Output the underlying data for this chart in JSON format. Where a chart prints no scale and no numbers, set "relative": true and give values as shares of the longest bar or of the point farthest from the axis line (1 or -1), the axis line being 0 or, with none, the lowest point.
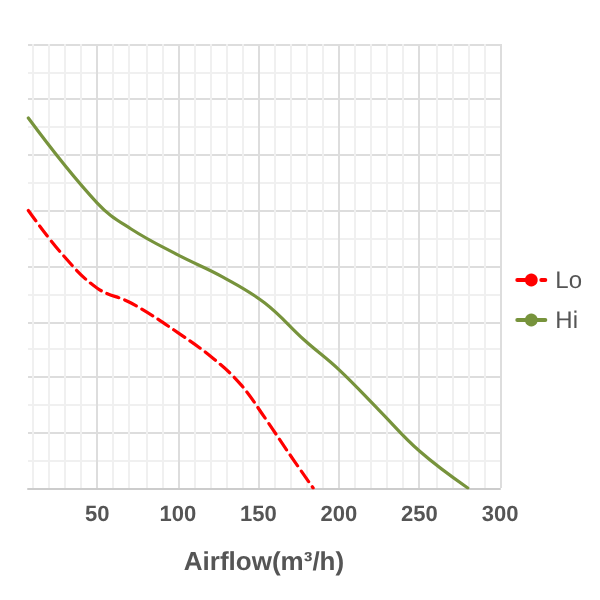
{
  "chart_data": {
    "type": "line",
    "xlabel": "Airflow(m³/h)",
    "relative": true,
    "xlim": [
      7,
      300
    ],
    "xticks": [
      50,
      100,
      150,
      200,
      250,
      300
    ],
    "grid": true,
    "legend": "right",
    "marker": "none",
    "series": [
      {
        "name": "Lo",
        "color": "#ff0000",
        "line_style": "dashed",
        "x": [
          7.2,
          28.6,
          50,
          71,
          100,
          122,
          139,
          154,
          168,
          184
        ],
        "values": [
          0.75,
          0.63,
          0.54,
          0.5,
          0.42,
          0.35,
          0.28,
          0.19,
          0.1,
          0
        ]
      },
      {
        "name": "Hi",
        "color": "#77933c",
        "line_style": "solid",
        "x": [
          7.2,
          50,
          71,
          100,
          128,
          154,
          178.5,
          200,
          225,
          250,
          280
        ],
        "values": [
          1,
          0.77,
          0.7,
          0.63,
          0.57,
          0.5,
          0.4,
          0.32,
          0.21,
          0.1,
          0
        ]
      }
    ]
  }
}
